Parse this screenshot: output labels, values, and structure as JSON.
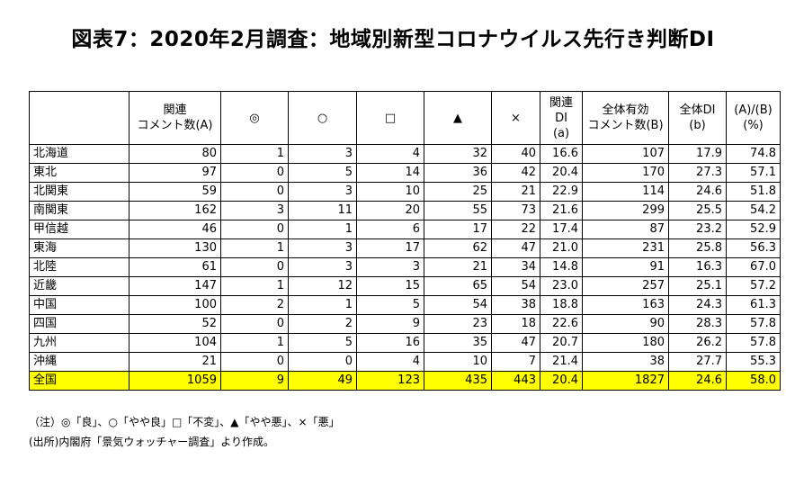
{
  "title": "図表7：2020年2月調査：地域別新型コロナウイルス先行き判断DI",
  "table": {
    "headers": [
      "",
      "関連\nコメント数(A)",
      "◎",
      "○",
      "□",
      "▲",
      "×",
      "関連\nDI\n(a)",
      "全体有効\nコメント数(B)",
      "全体DI\n(b)",
      "(A)/(B)\n(%)"
    ],
    "rows": [
      [
        "北海道",
        "80",
        "1",
        "3",
        "4",
        "32",
        "40",
        "16.6",
        "107",
        "17.9",
        "74.8"
      ],
      [
        "東北",
        "97",
        "0",
        "5",
        "14",
        "36",
        "42",
        "20.4",
        "170",
        "27.3",
        "57.1"
      ],
      [
        "北関東",
        "59",
        "0",
        "3",
        "10",
        "25",
        "21",
        "22.9",
        "114",
        "24.6",
        "51.8"
      ],
      [
        "南関東",
        "162",
        "3",
        "11",
        "20",
        "55",
        "73",
        "21.6",
        "299",
        "25.5",
        "54.2"
      ],
      [
        "甲信越",
        "46",
        "0",
        "1",
        "6",
        "17",
        "22",
        "17.4",
        "87",
        "23.2",
        "52.9"
      ],
      [
        "東海",
        "130",
        "1",
        "3",
        "17",
        "62",
        "47",
        "21.0",
        "231",
        "25.8",
        "56.3"
      ],
      [
        "北陸",
        "61",
        "0",
        "3",
        "3",
        "21",
        "34",
        "14.8",
        "91",
        "16.3",
        "67.0"
      ],
      [
        "近畿",
        "147",
        "1",
        "12",
        "15",
        "65",
        "54",
        "23.0",
        "257",
        "25.1",
        "57.2"
      ],
      [
        "中国",
        "100",
        "2",
        "1",
        "5",
        "54",
        "38",
        "18.8",
        "163",
        "24.3",
        "61.3"
      ],
      [
        "四国",
        "52",
        "0",
        "2",
        "9",
        "23",
        "18",
        "22.6",
        "90",
        "28.3",
        "57.8"
      ],
      [
        "九州",
        "104",
        "1",
        "5",
        "16",
        "35",
        "47",
        "20.7",
        "180",
        "26.2",
        "57.8"
      ],
      [
        "沖縄",
        "21",
        "0",
        "0",
        "4",
        "10",
        "7",
        "21.4",
        "38",
        "27.7",
        "55.3"
      ]
    ],
    "total": [
      "全国",
      "1059",
      "9",
      "49",
      "123",
      "435",
      "443",
      "20.4",
      "1827",
      "24.6",
      "58.0"
    ],
    "highlight_color": "#ffff00"
  },
  "notes": {
    "note": "（注）◎「良」、○「やや良」□「不変」、▲「やや悪」、×「悪」",
    "source": "(出所)内閣府「景気ウォッチャー調査」より作成。"
  }
}
